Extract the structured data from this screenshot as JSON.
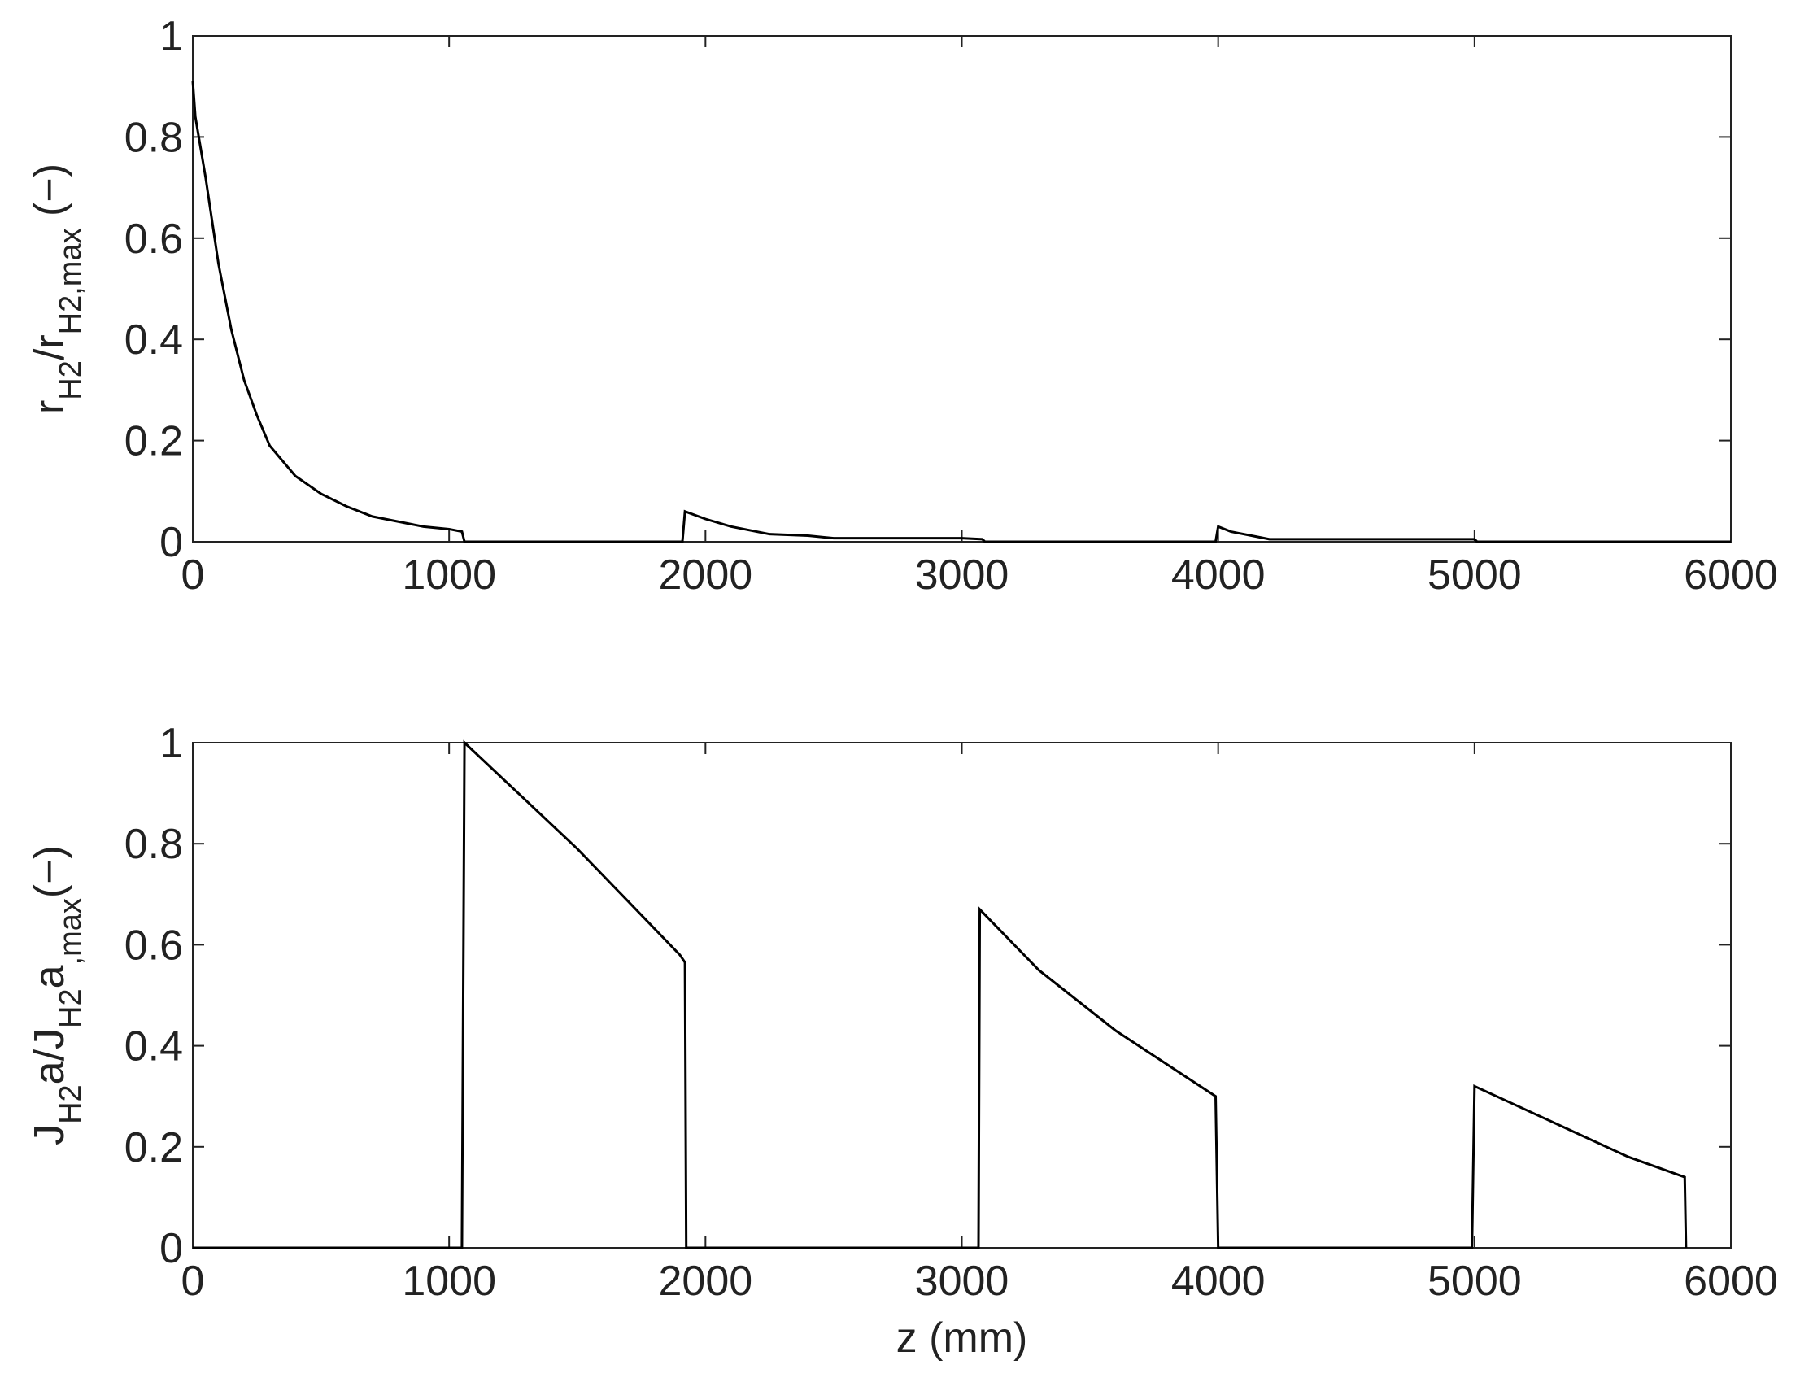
{
  "chart_data": [
    {
      "type": "line",
      "ylabel": [
        {
          "text": "r"
        },
        {
          "text": "H2",
          "sub": true
        },
        {
          "text": "/r"
        },
        {
          "text": "H2,max",
          "sub": true
        },
        {
          "text": " (−)"
        }
      ],
      "x": [
        0,
        10,
        50,
        100,
        150,
        200,
        250,
        300,
        400,
        500,
        600,
        700,
        800,
        900,
        1000,
        1050,
        1060,
        1910,
        1920,
        2000,
        2100,
        2200,
        2250,
        2400,
        2500,
        3000,
        3080,
        3090,
        3990,
        4000,
        4050,
        4150,
        4200,
        5000,
        5010,
        6000
      ],
      "values": [
        0.91,
        0.84,
        0.72,
        0.55,
        0.42,
        0.32,
        0.25,
        0.19,
        0.13,
        0.095,
        0.07,
        0.05,
        0.04,
        0.03,
        0.025,
        0.02,
        0,
        0,
        0.06,
        0.045,
        0.03,
        0.02,
        0.015,
        0.012,
        0.007,
        0.007,
        0.005,
        0,
        0,
        0.03,
        0.02,
        0.01,
        0.005,
        0.005,
        0,
        0
      ],
      "color": "#000000",
      "xlim": [
        0,
        6000
      ],
      "xticks": [
        0,
        1000,
        2000,
        3000,
        4000,
        5000,
        6000
      ],
      "ylim": [
        0,
        1
      ],
      "yticks": [
        0,
        0.2,
        0.4,
        0.6,
        0.8,
        1
      ]
    },
    {
      "type": "line",
      "xlabel": "z (mm)",
      "ylabel": [
        {
          "text": "J"
        },
        {
          "text": "H2",
          "sub": true
        },
        {
          "text": "a/J"
        },
        {
          "text": "H2",
          "sub": true
        },
        {
          "text": "a"
        },
        {
          "text": ",max",
          "sub": true
        },
        {
          "text": "(−)"
        }
      ],
      "x": [
        0,
        1050,
        1060,
        1500,
        1900,
        1920,
        1925,
        3065,
        3070,
        3300,
        3600,
        3990,
        4000,
        4990,
        5000,
        5300,
        5600,
        5820,
        5825
      ],
      "values": [
        0,
        0,
        1.0,
        0.79,
        0.58,
        0.565,
        0,
        0,
        0.67,
        0.55,
        0.43,
        0.3,
        0,
        0,
        0.32,
        0.25,
        0.18,
        0.14,
        0
      ],
      "color": "#000000",
      "xlim": [
        0,
        6000
      ],
      "xticks": [
        0,
        1000,
        2000,
        3000,
        4000,
        5000,
        6000
      ],
      "ylim": [
        0,
        1
      ],
      "yticks": [
        0,
        0.2,
        0.4,
        0.6,
        0.8,
        1
      ]
    }
  ]
}
